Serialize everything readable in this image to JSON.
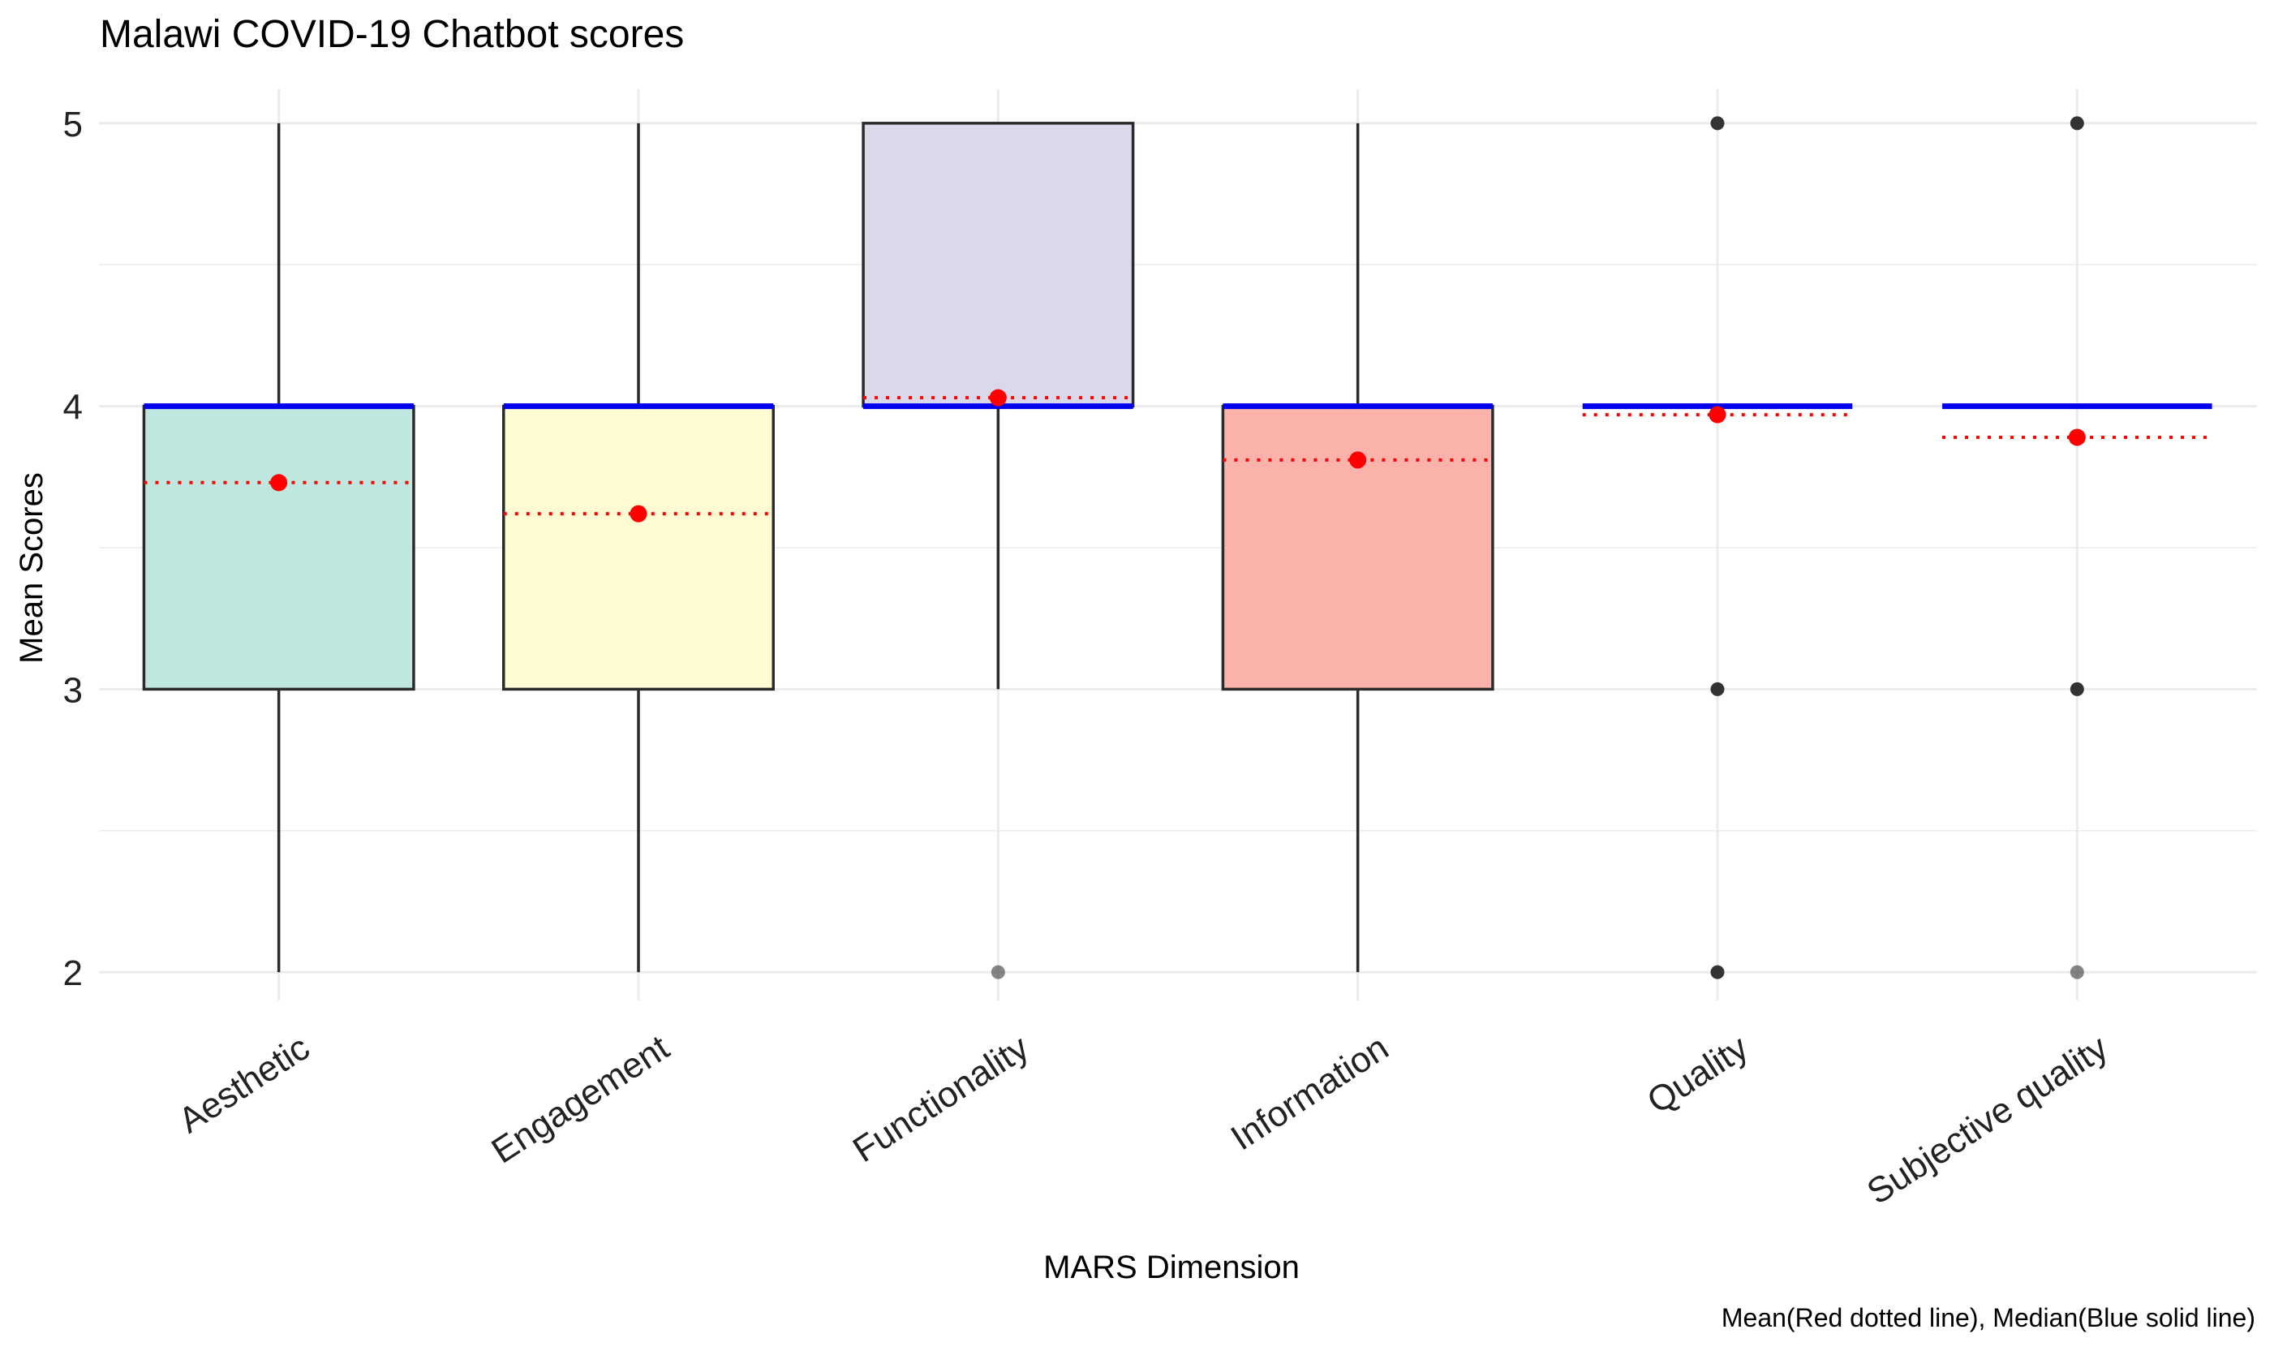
{
  "chart_data": {
    "type": "boxplot",
    "title": "Malawi COVID-19 Chatbot scores",
    "xlabel": "MARS Dimension",
    "ylabel": "Mean Scores",
    "caption": "Mean(Red dotted line), Median(Blue solid line)",
    "ylim": [
      1.9,
      5.12
    ],
    "yticks": [
      2,
      3,
      4,
      5
    ],
    "grid": true,
    "legend": "none",
    "categories": [
      "Aesthetic",
      "Engagement",
      "Functionality",
      "Information",
      "Quality",
      "Subjective quality"
    ],
    "boxes": [
      {
        "name": "Aesthetic",
        "q1": 3,
        "median": 4,
        "q3": 4,
        "whisker_low": 2,
        "whisker_high": 5,
        "mean": 3.73,
        "outliers": [],
        "fill": "#bfe6df"
      },
      {
        "name": "Engagement",
        "q1": 3,
        "median": 4,
        "q3": 4,
        "whisker_low": 2,
        "whisker_high": 5,
        "mean": 3.62,
        "outliers": [],
        "fill": "#fffcd4"
      },
      {
        "name": "Functionality",
        "q1": 4,
        "median": 4,
        "q3": 5,
        "whisker_low": 3,
        "whisker_high": 5,
        "mean": 4.03,
        "outliers": [
          2
        ],
        "fill": "#dad8e9"
      },
      {
        "name": "Information",
        "q1": 3,
        "median": 4,
        "q3": 4,
        "whisker_low": 2,
        "whisker_high": 5,
        "mean": 3.81,
        "outliers": [],
        "fill": "#fbb2aa"
      },
      {
        "name": "Quality",
        "q1": 4,
        "median": 4,
        "q3": 4,
        "whisker_low": 4,
        "whisker_high": 4,
        "mean": 3.97,
        "outliers": [
          5,
          3,
          2
        ],
        "fill": "#c5e0b4"
      },
      {
        "name": "Subjective quality",
        "q1": 4,
        "median": 4,
        "q3": 4,
        "whisker_low": 4,
        "whisker_high": 4,
        "mean": 3.89,
        "outliers": [
          5,
          3,
          2
        ],
        "fill": "#fdd9b5"
      }
    ],
    "colors": {
      "median": "#0000ee",
      "mean": "#ff0000",
      "box_stroke": "#2b2b2b",
      "grid": "#ebebeb",
      "outlier": "#333333"
    }
  }
}
